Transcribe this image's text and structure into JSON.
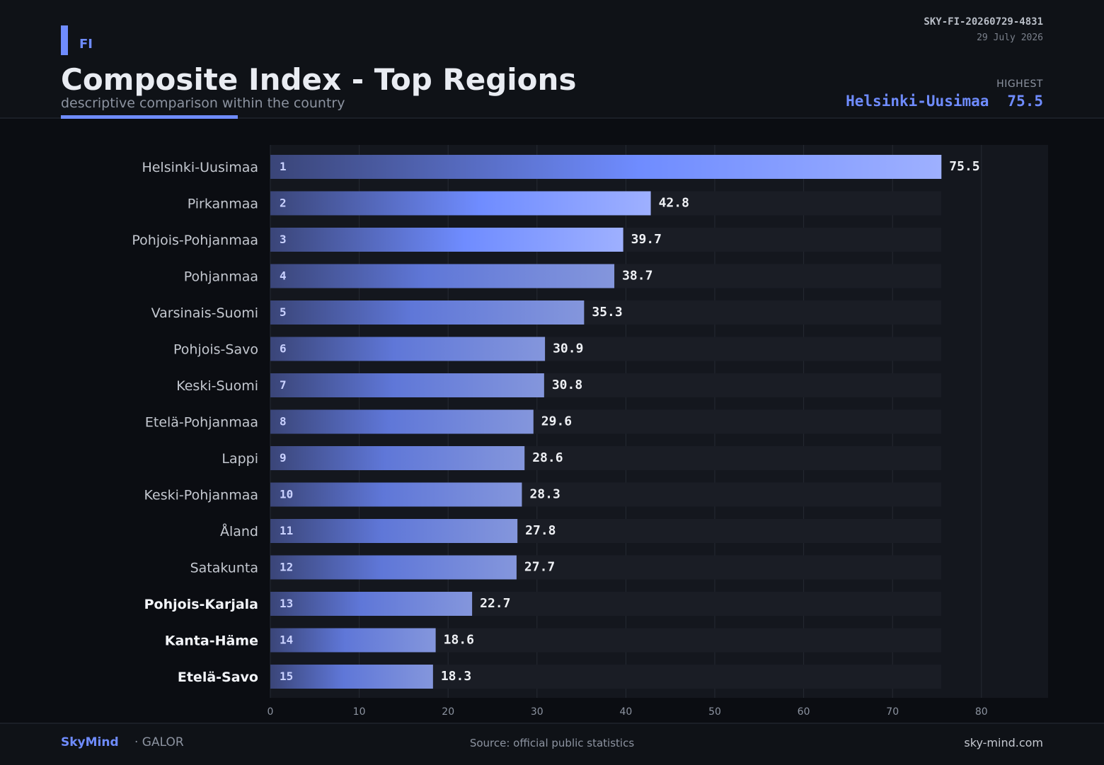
{
  "header": {
    "tag": "FI",
    "title": "Composite Index - Top Regions",
    "subtitle": "descriptive comparison within the country",
    "ref_id": "SKY-FI-20260729-4831",
    "date": "29 July 2026",
    "highest_label": "HIGHEST",
    "highest_region": "Helsinki-Uusimaa",
    "highest_value": "75.5"
  },
  "footer": {
    "brand": "SkyMind",
    "brand_suffix": "· GALOR",
    "source": "Source: official public statistics",
    "site": "sky-mind.com"
  },
  "colors": {
    "accent": "#6f8cff",
    "background": "#0b0d12",
    "panel": "#14171e",
    "track": "#1a1d25"
  },
  "chart_data": {
    "type": "bar",
    "orientation": "horizontal",
    "categories": [
      "Helsinki-Uusimaa",
      "Pirkanmaa",
      "Pohjois-Pohjanmaa",
      "Pohjanmaa",
      "Varsinais-Suomi",
      "Pohjois-Savo",
      "Keski-Suomi",
      "Etelä-Pohjanmaa",
      "Lappi",
      "Keski-Pohjanmaa",
      "Åland",
      "Satakunta",
      "Pohjois-Karjala",
      "Kanta-Häme",
      "Etelä-Savo"
    ],
    "values": [
      75.5,
      42.8,
      39.7,
      38.7,
      35.3,
      30.9,
      30.8,
      29.6,
      28.6,
      28.3,
      27.8,
      27.7,
      22.7,
      18.6,
      18.3
    ],
    "ranks": [
      "1",
      "2",
      "3",
      "4",
      "5",
      "6",
      "7",
      "8",
      "9",
      "10",
      "11",
      "12",
      "13",
      "14",
      "15"
    ],
    "value_labels": [
      "75.5",
      "42.8",
      "39.7",
      "38.7",
      "35.3",
      "30.9",
      "30.8",
      "29.6",
      "28.6",
      "28.3",
      "27.8",
      "27.7",
      "22.7",
      "18.6",
      "18.3"
    ],
    "bold_categories": [
      "Pohjois-Karjala",
      "Kanta-Häme",
      "Etelä-Savo"
    ],
    "x_ticks": [
      0,
      10,
      20,
      30,
      40,
      50,
      60,
      70,
      80
    ],
    "xlim": [
      0,
      87.5
    ],
    "grid": true
  }
}
